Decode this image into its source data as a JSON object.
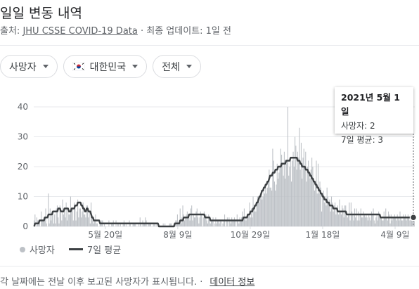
{
  "header": {
    "title": "일일 변동 내역",
    "source_prefix": "출처: ",
    "source_link": "JHU CSSE COVID-19 Data",
    "update_text": " · 최종 업데이트: 1일 전"
  },
  "filters": [
    {
      "label": "사망자"
    },
    {
      "label": "대한민국"
    },
    {
      "label": "전체"
    }
  ],
  "tooltip": {
    "date": "2021년 5월 1일",
    "deaths": "사망자: 2",
    "avg": "7일 평균: 3"
  },
  "legend": {
    "bars": "사망자",
    "line": "7일 평균"
  },
  "footer": {
    "text": "각 날짜에는 전날 이후 보고된 사망자가 표시됩니다. ·",
    "link": "데이터 정보"
  },
  "colors": {
    "bar": "#bdc1c6",
    "line": "#3c4043",
    "grid": "#e8eaed"
  },
  "chart_data": {
    "type": "bar",
    "ylim": [
      0,
      40
    ],
    "y_ticks": [
      0,
      10,
      20,
      30,
      40
    ],
    "x_ticks": [
      {
        "date": "2020-05-20",
        "label": "5월 20일"
      },
      {
        "date": "2020-08-09",
        "label": "8월 9일"
      },
      {
        "date": "2020-10-29",
        "label": "10월 29일"
      },
      {
        "date": "2021-01-18",
        "label": "1월 18일"
      },
      {
        "date": "2021-04-09",
        "label": "4월 9일"
      }
    ],
    "date_range": [
      "2020-03-01",
      "2021-05-01"
    ],
    "series": [
      {
        "name": "사망자",
        "kind": "bar",
        "values": [
          2,
          4,
          0,
          3,
          2,
          2,
          1,
          0,
          5,
          2,
          2,
          3,
          3,
          6,
          1,
          0,
          11,
          1,
          6,
          2,
          5,
          5,
          1,
          4,
          1,
          6,
          7,
          3,
          1,
          7,
          5,
          2,
          9,
          4,
          5,
          3,
          8,
          2,
          5,
          4,
          4,
          10,
          5,
          6,
          2,
          8,
          6,
          2,
          5,
          9,
          3,
          6,
          6,
          3,
          5,
          8,
          4,
          4,
          3,
          7,
          7,
          3,
          5,
          1,
          8,
          3,
          2,
          1,
          2,
          4,
          1,
          1,
          0,
          0,
          1,
          1,
          2,
          2,
          0,
          1,
          0,
          0,
          0,
          0,
          2,
          0,
          0,
          1,
          1,
          2,
          0,
          0,
          2,
          0,
          1,
          1,
          0,
          1,
          0,
          0,
          1,
          2,
          1,
          0,
          1,
          0,
          0,
          2,
          1,
          0,
          0,
          1,
          1,
          1,
          1,
          0,
          0,
          1,
          0,
          3,
          1,
          0,
          2,
          1,
          1,
          3,
          2,
          0,
          1,
          1,
          1,
          1,
          0,
          0,
          1,
          1,
          0,
          1,
          0,
          0,
          0,
          0,
          0,
          0,
          0,
          1,
          0,
          1,
          0,
          0,
          0,
          0,
          1,
          1,
          1,
          0,
          0,
          0,
          1,
          2,
          2,
          4,
          1,
          2,
          6,
          1,
          3,
          7,
          4,
          2,
          3,
          4,
          5,
          4,
          3,
          2,
          6,
          7,
          2,
          4,
          3,
          3,
          5,
          6,
          3,
          1,
          3,
          5,
          4,
          0,
          3,
          5,
          3,
          4,
          2,
          1,
          4,
          3,
          1,
          2,
          2,
          3,
          0,
          1,
          3,
          1,
          2,
          2,
          1,
          2,
          2,
          0,
          1,
          2,
          4,
          0,
          2,
          3,
          0,
          3,
          2,
          1,
          3,
          2,
          2,
          3,
          2,
          0,
          4,
          2,
          1,
          3,
          2,
          3,
          5,
          2,
          6,
          3,
          2,
          3,
          4,
          4,
          8,
          3,
          6,
          3,
          10,
          5,
          6,
          5,
          7,
          10,
          9,
          8,
          11,
          12,
          9,
          10,
          13,
          11,
          13,
          11,
          13,
          15,
          19,
          13,
          13,
          12,
          26,
          22,
          15,
          12,
          14,
          21,
          16,
          18,
          20,
          26,
          24,
          21,
          17,
          25,
          16,
          21,
          22,
          40,
          17,
          20,
          22,
          15,
          22,
          25,
          20,
          30,
          27,
          19,
          25,
          23,
          33,
          19,
          28,
          16,
          23,
          26,
          19,
          25,
          15,
          20,
          22,
          18,
          16,
          19,
          23,
          20,
          16,
          12,
          15,
          22,
          11,
          21,
          11,
          15,
          13,
          5,
          11,
          12,
          8,
          10,
          7,
          13,
          10,
          8,
          9,
          5,
          10,
          8,
          5,
          7,
          8,
          4,
          6,
          7,
          4,
          9,
          5,
          4,
          7,
          6,
          3,
          7,
          7,
          5,
          3,
          4,
          8,
          2,
          8,
          5,
          4,
          2,
          6,
          3,
          6,
          2,
          5,
          2,
          4,
          6,
          3,
          3,
          5,
          4,
          3,
          4,
          3,
          2,
          4,
          3,
          2,
          5,
          4,
          6,
          2,
          1,
          3,
          4,
          2,
          5,
          3,
          4,
          3,
          2,
          2,
          5,
          3,
          6,
          3,
          2,
          5,
          4,
          1,
          4,
          2,
          3,
          3,
          4,
          3,
          2,
          4,
          3,
          2,
          5,
          3,
          2,
          2,
          4,
          3,
          4,
          2,
          3,
          4,
          3,
          2,
          4,
          3,
          4,
          3,
          2
        ]
      },
      {
        "name": "7일 평균",
        "kind": "line",
        "values": [
          0,
          1,
          1,
          1,
          1,
          1,
          2,
          2,
          2,
          2,
          2,
          2,
          3,
          3,
          3,
          3,
          4,
          4,
          4,
          4,
          4,
          5,
          5,
          5,
          5,
          5,
          5,
          6,
          6,
          6,
          5,
          5,
          5,
          5,
          6,
          6,
          6,
          6,
          6,
          5,
          5,
          5,
          6,
          6,
          6,
          6,
          7,
          7,
          7,
          8,
          8,
          8,
          8,
          7,
          7,
          6,
          6,
          5,
          5,
          6,
          6,
          5,
          5,
          5,
          4,
          3,
          3,
          2,
          2,
          2,
          2,
          2,
          2,
          2,
          1,
          1,
          1,
          1,
          1,
          1,
          1,
          1,
          1,
          1,
          1,
          1,
          1,
          1,
          1,
          1,
          1,
          1,
          1,
          1,
          1,
          1,
          1,
          1,
          1,
          1,
          1,
          1,
          1,
          1,
          1,
          1,
          1,
          1,
          1,
          1,
          1,
          1,
          1,
          1,
          1,
          1,
          1,
          1,
          1,
          1,
          1,
          1,
          1,
          1,
          1,
          1,
          1,
          1,
          1,
          1,
          1,
          1,
          1,
          1,
          1,
          1,
          1,
          1,
          1,
          1,
          0,
          0,
          0,
          0,
          0,
          0,
          0,
          0,
          0,
          0,
          0,
          0,
          0,
          0,
          0,
          0,
          0,
          0,
          1,
          1,
          1,
          1,
          1,
          1,
          2,
          2,
          2,
          2,
          3,
          3,
          3,
          3,
          3,
          3,
          4,
          4,
          4,
          4,
          4,
          4,
          4,
          4,
          4,
          4,
          4,
          4,
          4,
          4,
          4,
          4,
          4,
          4,
          3,
          3,
          3,
          3,
          3,
          3,
          2,
          2,
          2,
          2,
          2,
          2,
          2,
          2,
          2,
          2,
          2,
          2,
          2,
          2,
          2,
          2,
          2,
          2,
          2,
          2,
          2,
          2,
          2,
          2,
          2,
          2,
          2,
          2,
          2,
          2,
          2,
          2,
          2,
          2,
          2,
          2,
          2,
          3,
          3,
          3,
          3,
          3,
          4,
          4,
          4,
          5,
          5,
          5,
          6,
          6,
          7,
          7,
          8,
          8,
          9,
          10,
          10,
          11,
          12,
          12,
          13,
          13,
          14,
          14,
          15,
          15,
          16,
          17,
          17,
          17,
          18,
          18,
          18,
          19,
          19,
          19,
          20,
          20,
          20,
          20,
          21,
          21,
          21,
          21,
          21,
          22,
          22,
          22,
          22,
          22,
          23,
          23,
          23,
          23,
          23,
          23,
          23,
          23,
          22,
          22,
          22,
          21,
          21,
          20,
          20,
          20,
          20,
          19,
          19,
          19,
          18,
          18,
          17,
          17,
          16,
          16,
          15,
          15,
          14,
          14,
          13,
          13,
          12,
          12,
          11,
          11,
          10,
          10,
          9,
          9,
          9,
          8,
          8,
          8,
          7,
          7,
          7,
          7,
          6,
          6,
          6,
          6,
          6,
          5,
          5,
          5,
          5,
          5,
          5,
          5,
          5,
          5,
          5,
          4,
          4,
          4,
          4,
          4,
          4,
          4,
          4,
          4,
          4,
          4,
          4,
          4,
          4,
          4,
          4,
          4,
          4,
          4,
          4,
          4,
          4,
          4,
          4,
          4,
          4,
          4,
          4,
          4,
          4,
          4,
          4,
          4,
          4,
          4,
          4,
          4,
          4,
          3,
          3,
          3,
          3,
          3,
          3,
          3,
          3,
          3,
          3,
          3,
          3,
          3,
          3,
          3,
          3,
          3,
          3,
          3,
          3,
          3,
          3,
          3,
          3,
          3,
          3,
          3,
          3,
          3,
          3,
          3,
          3,
          3,
          3,
          3,
          3,
          3,
          3,
          3
        ]
      }
    ],
    "grid": true,
    "legend_position": "bottom-left",
    "highlight": {
      "date": "2021-05-01",
      "value": 2,
      "avg": 3
    }
  }
}
